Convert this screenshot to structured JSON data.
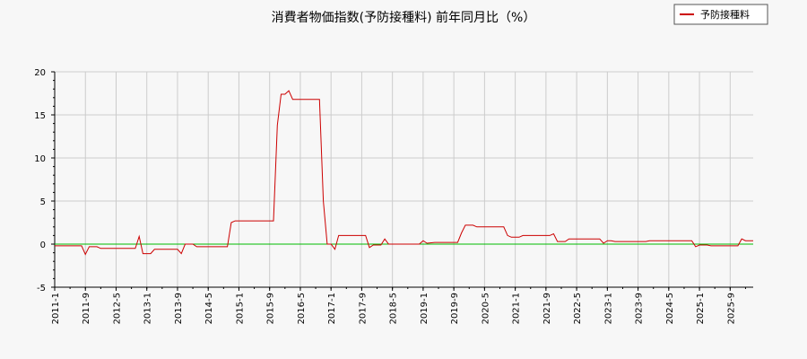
{
  "chart_data": {
    "type": "line",
    "title": "消費者物価指数(予防接種料) 前年同月比（%）",
    "legend": {
      "placement": "top-right",
      "label": "予防接種料"
    },
    "xlabel": "",
    "ylabel": "",
    "ylim": [
      -5,
      20
    ],
    "yticks": [
      -5,
      0,
      5,
      10,
      15,
      20
    ],
    "grid": true,
    "xticks": [
      "2011-1",
      "2011-9",
      "2012-5",
      "2013-1",
      "2013-9",
      "2014-5",
      "2015-1",
      "2015-9",
      "2016-5",
      "2017-1",
      "2017-9",
      "2018-5",
      "2019-1",
      "2019-9",
      "2020-5",
      "2021-1",
      "2021-9",
      "2022-5",
      "2023-1",
      "2023-9",
      "2024-5",
      "2025-1",
      "2025-9"
    ],
    "colors": {
      "series": "#cc0000",
      "zero_line": "#00bb00",
      "grid": "#cccccc"
    },
    "series": [
      {
        "name": "予防接種料",
        "points": [
          [
            "2011-01",
            -0.2
          ],
          [
            "2011-08",
            -0.2
          ],
          [
            "2011-09",
            -1.2
          ],
          [
            "2011-10",
            -0.3
          ],
          [
            "2011-12",
            -0.3
          ],
          [
            "2012-01",
            -0.5
          ],
          [
            "2012-10",
            -0.5
          ],
          [
            "2012-11",
            0.9
          ],
          [
            "2012-12",
            -1.1
          ],
          [
            "2013-02",
            -1.1
          ],
          [
            "2013-03",
            -0.6
          ],
          [
            "2013-09",
            -0.6
          ],
          [
            "2013-10",
            -1.1
          ],
          [
            "2013-11",
            0.0
          ],
          [
            "2014-01",
            0.0
          ],
          [
            "2014-02",
            -0.3
          ],
          [
            "2014-10",
            -0.3
          ],
          [
            "2014-11",
            2.5
          ],
          [
            "2014-12",
            2.7
          ],
          [
            "2015-10",
            2.7
          ],
          [
            "2015-11",
            13.8
          ],
          [
            "2015-12",
            17.4
          ],
          [
            "2016-01",
            17.4
          ],
          [
            "2016-02",
            17.8
          ],
          [
            "2016-03",
            16.8
          ],
          [
            "2016-10",
            16.8
          ],
          [
            "2016-11",
            5.0
          ],
          [
            "2016-12",
            0.0
          ],
          [
            "2017-01",
            0.0
          ],
          [
            "2017-02",
            -0.6
          ],
          [
            "2017-03",
            1.0
          ],
          [
            "2017-10",
            1.0
          ],
          [
            "2017-11",
            -0.4
          ],
          [
            "2017-12",
            -0.1
          ],
          [
            "2018-02",
            -0.1
          ],
          [
            "2018-03",
            0.6
          ],
          [
            "2018-04",
            0.0
          ],
          [
            "2018-12",
            0.0
          ],
          [
            "2019-01",
            0.4
          ],
          [
            "2019-02",
            0.1
          ],
          [
            "2019-04",
            0.2
          ],
          [
            "2019-10",
            0.2
          ],
          [
            "2019-11",
            1.3
          ],
          [
            "2019-12",
            2.2
          ],
          [
            "2020-02",
            2.2
          ],
          [
            "2020-03",
            2.0
          ],
          [
            "2020-10",
            2.0
          ],
          [
            "2020-11",
            1.0
          ],
          [
            "2020-12",
            0.8
          ],
          [
            "2021-02",
            0.8
          ],
          [
            "2021-03",
            1.0
          ],
          [
            "2021-10",
            1.0
          ],
          [
            "2021-11",
            1.2
          ],
          [
            "2021-12",
            0.3
          ],
          [
            "2022-02",
            0.3
          ],
          [
            "2022-03",
            0.6
          ],
          [
            "2022-11",
            0.6
          ],
          [
            "2022-12",
            0.1
          ],
          [
            "2023-01",
            0.4
          ],
          [
            "2023-02",
            0.4
          ],
          [
            "2023-03",
            0.3
          ],
          [
            "2023-11",
            0.3
          ],
          [
            "2023-12",
            0.4
          ],
          [
            "2024-11",
            0.4
          ],
          [
            "2024-12",
            -0.3
          ],
          [
            "2025-01",
            -0.1
          ],
          [
            "2025-03",
            -0.1
          ],
          [
            "2025-04",
            -0.2
          ],
          [
            "2025-11",
            -0.2
          ],
          [
            "2025-12",
            0.6
          ],
          [
            "2026-01",
            0.4
          ],
          [
            "2026-03",
            0.4
          ]
        ]
      }
    ]
  }
}
